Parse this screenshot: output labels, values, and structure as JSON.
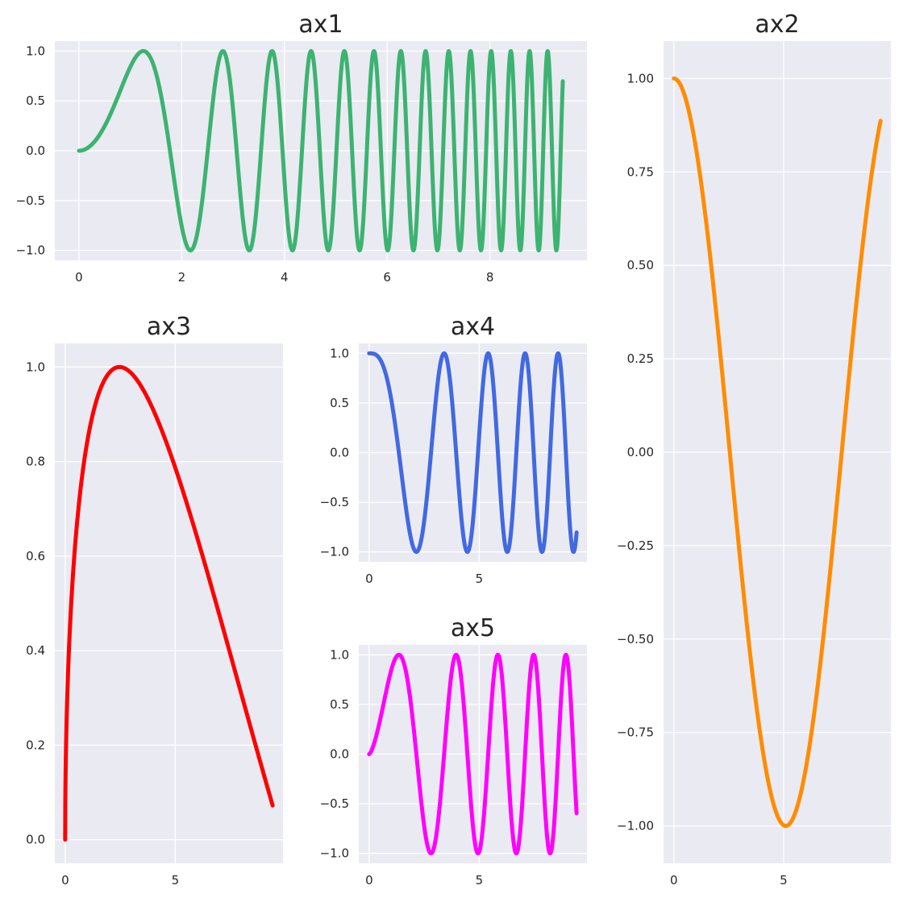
{
  "chart_data": [
    {
      "id": "ax1",
      "type": "line",
      "title": "ax1",
      "function": "sin(x^2)",
      "xlim": [
        -0.47,
        9.89
      ],
      "ylim": [
        -1.1,
        1.1
      ],
      "xticks": [
        0,
        2,
        4,
        6,
        8
      ],
      "xtick_labels": [
        "0",
        "2",
        "4",
        "6",
        "8"
      ],
      "yticks": [
        -1,
        -0.5,
        0,
        0.5,
        1
      ],
      "ytick_labels": [
        "−1.0",
        "−0.5",
        "0.0",
        "0.5",
        "1.0"
      ],
      "grid": true,
      "series": [
        {
          "color": "#3cb371",
          "x_range": [
            0,
            9.42
          ],
          "y_range": [
            -1,
            1
          ]
        }
      ]
    },
    {
      "id": "ax2",
      "type": "line",
      "title": "ax2",
      "function": "cos(x^0.6*2/3... )",
      "xlim": [
        -0.47,
        9.89
      ],
      "ylim": [
        -1.1,
        1.1
      ],
      "xticks": [
        0,
        5
      ],
      "xtick_labels": [
        "0",
        "5"
      ],
      "yticks": [
        -1,
        -0.75,
        -0.5,
        -0.25,
        0,
        0.25,
        0.5,
        0.75,
        1
      ],
      "ytick_labels": [
        "−1.00",
        "−0.75",
        "−0.50",
        "−0.25",
        "0.00",
        "0.25",
        "0.50",
        "0.75",
        "1.00"
      ],
      "grid": true,
      "series": [
        {
          "color": "#ff8c00",
          "x_range": [
            0,
            9.42
          ],
          "y_range": [
            -1,
            1
          ]
        }
      ]
    },
    {
      "id": "ax3",
      "type": "line",
      "title": "ax3",
      "function": "sin(x^0.5)",
      "xlim": [
        -0.47,
        9.89
      ],
      "ylim": [
        -0.05,
        1.05
      ],
      "xticks": [
        0,
        5
      ],
      "xtick_labels": [
        "0",
        "5"
      ],
      "yticks": [
        0,
        0.2,
        0.4,
        0.6,
        0.8,
        1.0
      ],
      "ytick_labels": [
        "0.0",
        "0.2",
        "0.4",
        "0.6",
        "0.8",
        "1.0"
      ],
      "grid": true,
      "series": [
        {
          "color": "#ff0000",
          "x_range": [
            0,
            9.42
          ],
          "y_range": [
            0,
            1
          ]
        }
      ]
    },
    {
      "id": "ax4",
      "type": "line",
      "title": "ax4",
      "function": "cos(x^1.5)",
      "xlim": [
        -0.47,
        9.89
      ],
      "ylim": [
        -1.1,
        1.1
      ],
      "xticks": [
        0,
        5
      ],
      "xtick_labels": [
        "0",
        "5"
      ],
      "yticks": [
        -1,
        -0.5,
        0,
        0.5,
        1
      ],
      "ytick_labels": [
        "−1.0",
        "−0.5",
        "0.0",
        "0.5",
        "1.0"
      ],
      "grid": true,
      "series": [
        {
          "color": "#4169e1",
          "x_range": [
            0,
            9.42
          ],
          "y_range": [
            -1,
            1
          ]
        }
      ]
    },
    {
      "id": "ax5",
      "type": "line",
      "title": "ax5",
      "function": "sin(x^1.5)",
      "xlim": [
        -0.47,
        9.89
      ],
      "ylim": [
        -1.1,
        1.1
      ],
      "xticks": [
        0,
        5
      ],
      "xtick_labels": [
        "0",
        "5"
      ],
      "yticks": [
        -1,
        -0.5,
        0,
        0.5,
        1
      ],
      "ytick_labels": [
        "−1.0",
        "−0.5",
        "0.0",
        "0.5",
        "1.0"
      ],
      "grid": true,
      "series": [
        {
          "color": "#ff00ff",
          "x_range": [
            0,
            9.42
          ],
          "y_range": [
            -1,
            1
          ]
        }
      ]
    }
  ]
}
